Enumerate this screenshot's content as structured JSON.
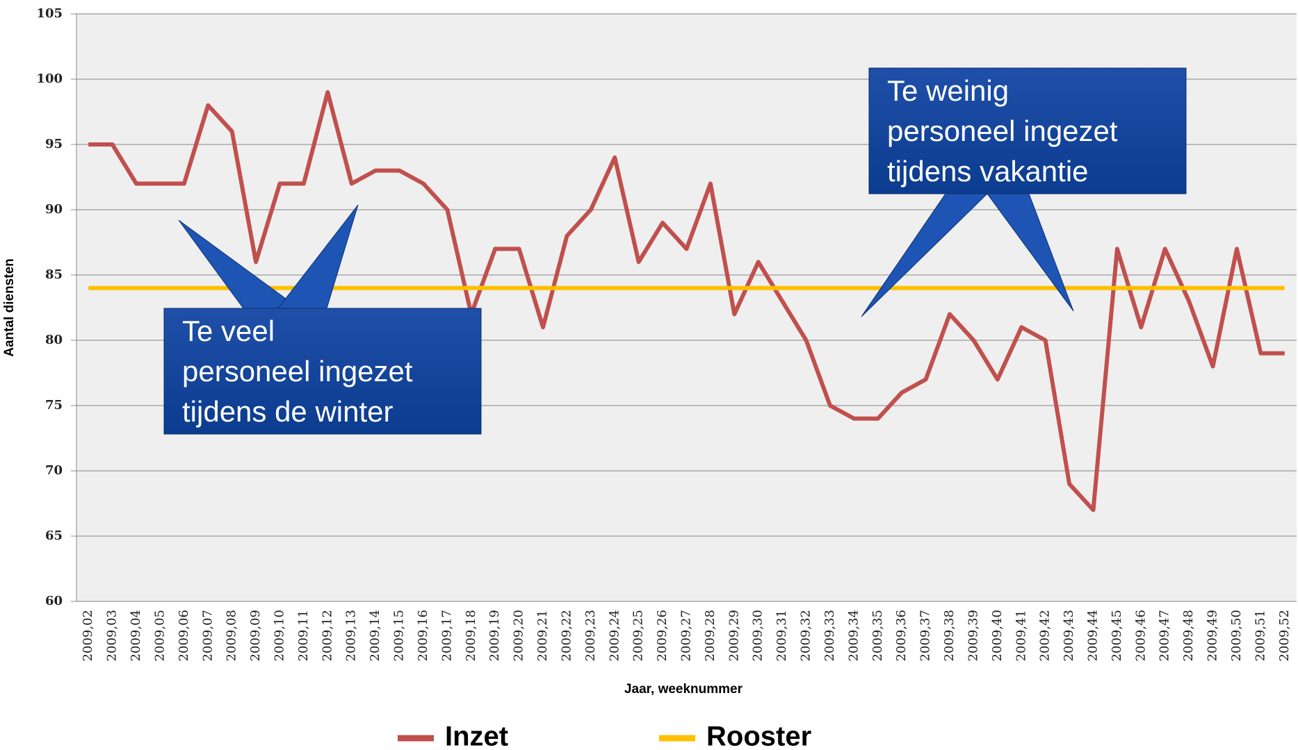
{
  "chart_data": {
    "type": "line",
    "x_label": "Jaar, weeknummer",
    "y_label": "Aantal diensten",
    "categories": [
      "2009,02",
      "2009,03",
      "2009,04",
      "2009,05",
      "2009,06",
      "2009,07",
      "2009,08",
      "2009,09",
      "2009,10",
      "2009,11",
      "2009,12",
      "2009,13",
      "2009,14",
      "2009,15",
      "2009,16",
      "2009,17",
      "2009,18",
      "2009,19",
      "2009,20",
      "2009,21",
      "2009,22",
      "2009,23",
      "2009,24",
      "2009,25",
      "2009,26",
      "2009,27",
      "2009,28",
      "2009,29",
      "2009,30",
      "2009,31",
      "2009,32",
      "2009,33",
      "2009,34",
      "2009,35",
      "2009,36",
      "2009,37",
      "2009,38",
      "2009,39",
      "2009,40",
      "2009,41",
      "2009,42",
      "2009,43",
      "2009,44",
      "2009,45",
      "2009,46",
      "2009,47",
      "2009,48",
      "2009,49",
      "2009,50",
      "2009,51",
      "2009,52"
    ],
    "series": [
      {
        "name": "Inzet",
        "color": "#c0504d",
        "values": [
          95,
          95,
          92,
          92,
          92,
          98,
          96,
          86,
          92,
          92,
          99,
          92,
          93,
          93,
          92,
          90,
          82,
          87,
          87,
          81,
          88,
          90,
          94,
          86,
          89,
          87,
          92,
          82,
          86,
          83,
          80,
          75,
          74,
          74,
          76,
          77,
          82,
          80,
          77,
          81,
          80,
          69,
          67,
          87,
          81,
          87,
          83,
          78,
          87,
          79,
          79
        ]
      },
      {
        "name": "Rooster",
        "color": "#ffc000",
        "values": [
          84,
          84,
          84,
          84,
          84,
          84,
          84,
          84,
          84,
          84,
          84,
          84,
          84,
          84,
          84,
          84,
          84,
          84,
          84,
          84,
          84,
          84,
          84,
          84,
          84,
          84,
          84,
          84,
          84,
          84,
          84,
          84,
          84,
          84,
          84,
          84,
          84,
          84,
          84,
          84,
          84,
          84,
          84,
          84,
          84,
          84,
          84,
          84,
          84,
          84,
          84
        ]
      }
    ],
    "ylim": [
      60,
      105
    ],
    "yticks": [
      60,
      65,
      70,
      75,
      80,
      85,
      90,
      95,
      100,
      105
    ],
    "grid": true,
    "annotations": [
      {
        "lines": [
          "Te veel",
          "personeel ingezet",
          "tijdens de winter"
        ]
      },
      {
        "lines": [
          "Te weinig",
          "personeel ingezet",
          "tijdens vakantie"
        ]
      }
    ]
  }
}
